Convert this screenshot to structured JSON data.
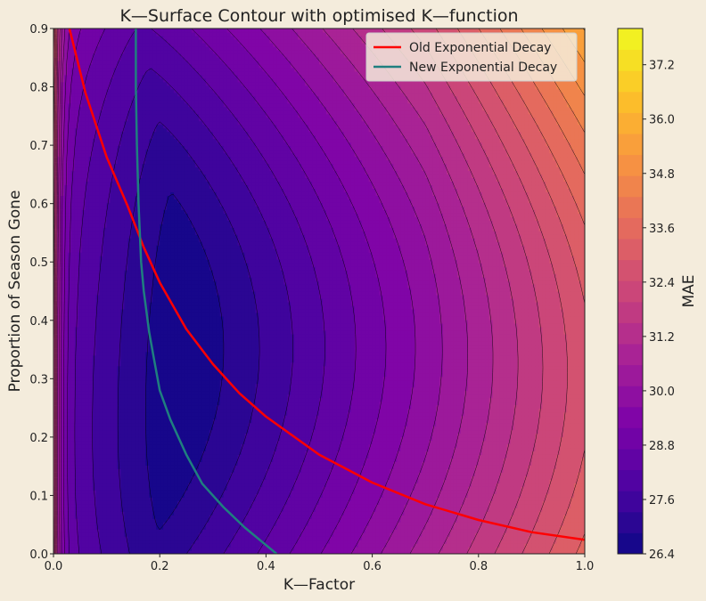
{
  "chart_data": {
    "type": "contour",
    "title": "K—Surface Contour with optimised K—function",
    "xlabel": "K—Factor",
    "ylabel": "Proportion of Season Gone",
    "xlim": [
      0.0,
      1.0
    ],
    "ylim": [
      0.0,
      0.9
    ],
    "x_ticks": [
      "0.0",
      "0.2",
      "0.4",
      "0.6",
      "0.8",
      "1.0"
    ],
    "y_ticks": [
      "0.0",
      "0.1",
      "0.2",
      "0.3",
      "0.4",
      "0.5",
      "0.6",
      "0.7",
      "0.8",
      "0.9"
    ],
    "grid": false,
    "colormap": "plasma",
    "surface": {
      "min_location": {
        "k": 0.19,
        "p": 0.33
      },
      "min_value": 26.4,
      "max_value": 38.0,
      "levels": 25
    },
    "colorbar": {
      "label": "MAE",
      "range": [
        26.4,
        38.0
      ],
      "ticks": [
        "26.4",
        "27.6",
        "28.8",
        "30.0",
        "31.2",
        "32.4",
        "33.6",
        "34.8",
        "36.0",
        "37.2"
      ]
    },
    "series": [
      {
        "name": "Old Exponential Decay",
        "color": "#ff0000",
        "points": [
          [
            0.03,
            0.9
          ],
          [
            0.06,
            0.79
          ],
          [
            0.1,
            0.68
          ],
          [
            0.14,
            0.595
          ],
          [
            0.17,
            0.525
          ],
          [
            0.2,
            0.465
          ],
          [
            0.25,
            0.385
          ],
          [
            0.3,
            0.325
          ],
          [
            0.35,
            0.275
          ],
          [
            0.4,
            0.235
          ],
          [
            0.5,
            0.17
          ],
          [
            0.6,
            0.122
          ],
          [
            0.7,
            0.085
          ],
          [
            0.8,
            0.058
          ],
          [
            0.9,
            0.037
          ],
          [
            1.0,
            0.024
          ]
        ]
      },
      {
        "name": "New Exponential Decay",
        "color": "#1f7f7f",
        "points": [
          [
            0.155,
            0.9
          ],
          [
            0.155,
            0.8
          ],
          [
            0.157,
            0.7
          ],
          [
            0.16,
            0.6
          ],
          [
            0.165,
            0.5
          ],
          [
            0.17,
            0.45
          ],
          [
            0.18,
            0.38
          ],
          [
            0.19,
            0.33
          ],
          [
            0.2,
            0.28
          ],
          [
            0.22,
            0.23
          ],
          [
            0.25,
            0.17
          ],
          [
            0.28,
            0.12
          ],
          [
            0.32,
            0.08
          ],
          [
            0.36,
            0.045
          ],
          [
            0.4,
            0.015
          ],
          [
            0.42,
            0.0
          ]
        ]
      }
    ],
    "legend": {
      "position": "top-right"
    }
  }
}
